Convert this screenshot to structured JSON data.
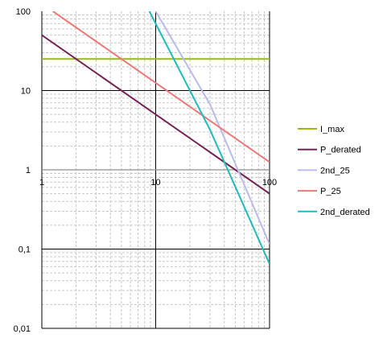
{
  "chart_data": {
    "type": "line",
    "title": "",
    "xlabel": "",
    "ylabel": "",
    "xscale": "log",
    "yscale": "log",
    "xlim": [
      1,
      100
    ],
    "ylim": [
      0.01,
      100
    ],
    "grid": true,
    "legend_position": "right",
    "x_tick_labels": [
      "1",
      "10",
      "100"
    ],
    "y_tick_labels": [
      "0,01",
      "0,1",
      "1",
      "10",
      "100"
    ],
    "series": [
      {
        "name": "I_max",
        "color": "#99bb11",
        "points": [
          [
            1,
            25
          ],
          [
            100,
            25
          ]
        ]
      },
      {
        "name": "P_derated",
        "color": "#772255",
        "points": [
          [
            1,
            50
          ],
          [
            10,
            5
          ],
          [
            100,
            0.5
          ]
        ]
      },
      {
        "name": "2nd_25",
        "color": "#bbbbee",
        "points": [
          [
            10,
            100
          ],
          [
            30,
            6.7
          ],
          [
            100,
            0.115
          ]
        ]
      },
      {
        "name": "P_25",
        "color": "#ee7777",
        "points": [
          [
            1.25,
            100
          ],
          [
            10,
            12.5
          ],
          [
            100,
            1.25
          ]
        ]
      },
      {
        "name": "2nd_derated",
        "color": "#22bbbb",
        "points": [
          [
            8.8,
            100
          ],
          [
            30,
            3.2
          ],
          [
            100,
            0.065
          ]
        ]
      }
    ]
  }
}
